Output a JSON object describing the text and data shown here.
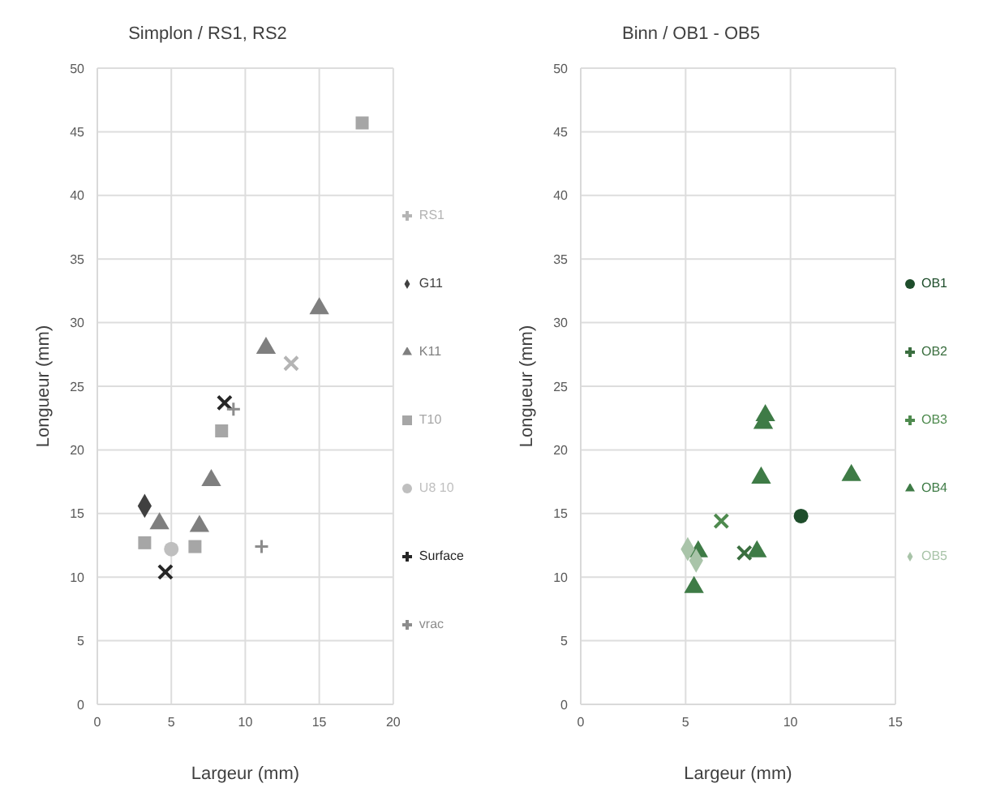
{
  "chart_data": [
    {
      "type": "scatter",
      "title": "Simplon / RS1, RS2",
      "xlabel": "Largeur (mm)",
      "ylabel": "Longueur (mm)",
      "xlim": [
        0,
        20
      ],
      "xticks": [
        0,
        5,
        10,
        15,
        20
      ],
      "ylim": [
        0,
        50
      ],
      "yticks": [
        0,
        5,
        10,
        15,
        20,
        25,
        30,
        35,
        40,
        45,
        50
      ],
      "grid": true,
      "legend": "right",
      "series": [
        {
          "name": "RS1",
          "color": "#b4b4b4",
          "marker": "cross",
          "x": [
            13.1
          ],
          "values": [
            26.8
          ]
        },
        {
          "name": "G11",
          "color": "#404040",
          "marker": "diamond",
          "x": [
            3.2
          ],
          "values": [
            15.6
          ]
        },
        {
          "name": "K11",
          "color": "#7f7f7f",
          "marker": "triangle",
          "x": [
            4.2,
            6.9,
            7.7,
            11.4,
            15.0
          ],
          "values": [
            14.2,
            14.0,
            17.6,
            28.0,
            31.1
          ]
        },
        {
          "name": "T10",
          "color": "#a6a6a6",
          "marker": "square",
          "x": [
            3.2,
            6.6,
            8.4,
            17.9
          ],
          "values": [
            12.7,
            12.4,
            21.5,
            45.7
          ]
        },
        {
          "name": "U8 10",
          "color": "#bfbfbf",
          "marker": "circle",
          "x": [
            5.0
          ],
          "values": [
            12.2
          ]
        },
        {
          "name": "Surface",
          "color": "#262626",
          "marker": "cross",
          "x": [
            4.6,
            8.6
          ],
          "values": [
            10.4,
            23.7
          ]
        },
        {
          "name": "vrac",
          "color": "#8c8c8c",
          "marker": "plus",
          "x": [
            9.2,
            11.1
          ],
          "values": [
            23.2,
            12.4
          ]
        }
      ]
    },
    {
      "type": "scatter",
      "title": "Binn / OB1 - OB5",
      "xlabel": "Largeur (mm)",
      "ylabel": "Longueur (mm)",
      "xlim": [
        0,
        15
      ],
      "xticks": [
        0,
        5,
        10,
        15
      ],
      "ylim": [
        0,
        50
      ],
      "yticks": [
        0,
        5,
        10,
        15,
        20,
        25,
        30,
        35,
        40,
        45,
        50
      ],
      "grid": true,
      "legend": "right",
      "series": [
        {
          "name": "OB1",
          "color": "#1e4d2b",
          "marker": "circle",
          "x": [
            10.5
          ],
          "values": [
            14.8
          ]
        },
        {
          "name": "OB2",
          "color": "#3a6e3f",
          "marker": "cross",
          "x": [
            7.8
          ],
          "values": [
            11.9
          ]
        },
        {
          "name": "OB3",
          "color": "#4e8a4e",
          "marker": "cross",
          "x": [
            6.7
          ],
          "values": [
            14.4
          ]
        },
        {
          "name": "OB4",
          "color": "#3e7b46",
          "marker": "triangle",
          "x": [
            5.6,
            5.4,
            8.4,
            8.6,
            8.7,
            8.8,
            12.9
          ],
          "values": [
            12.0,
            9.2,
            12.0,
            17.8,
            22.1,
            22.7,
            18.0
          ]
        },
        {
          "name": "OB5",
          "color": "#a9c4a9",
          "marker": "diamond",
          "x": [
            5.1,
            5.5
          ],
          "values": [
            12.2,
            11.3
          ]
        }
      ]
    }
  ]
}
